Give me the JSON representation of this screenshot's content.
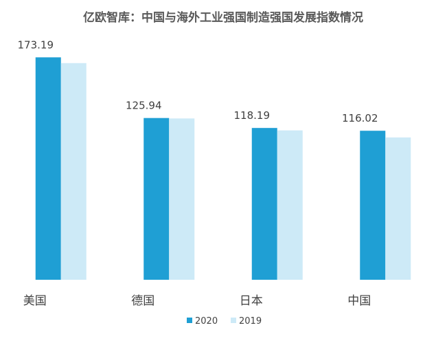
{
  "chart_data": {
    "type": "bar",
    "title": "亿欧智库：中国与海外工业强国制造强国发展指数情况",
    "categories": [
      "美国",
      "德国",
      "日本",
      "中国"
    ],
    "series": [
      {
        "name": "2020",
        "color": "#1f9fd4",
        "values": [
          173.19,
          125.94,
          118.19,
          116.02
        ]
      },
      {
        "name": "2019",
        "color": "#cdeaf7",
        "values": [
          168.7,
          125.6,
          116.3,
          110.8
        ]
      }
    ],
    "data_labels": [
      "173.19",
      "125.94",
      "118.19",
      "116.02"
    ],
    "ylim": [
      0,
      180
    ],
    "grid": false,
    "legend_position": "bottom"
  }
}
